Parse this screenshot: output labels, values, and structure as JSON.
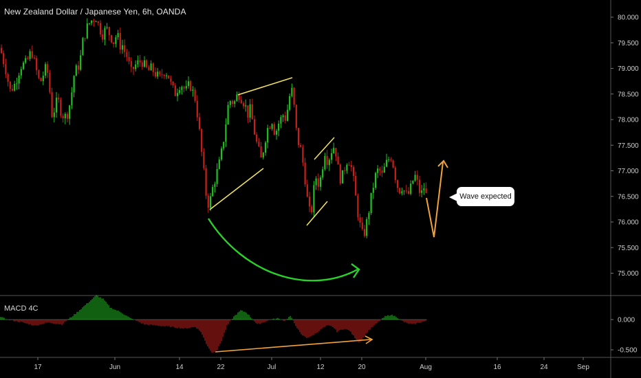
{
  "header": {
    "title": "New Zealand Dollar / Japanese Yen, 6h, OANDA"
  },
  "macd": {
    "label": "MACD 4C",
    "yticks": [
      "0.000",
      "-0.500"
    ]
  },
  "annotation": {
    "callout_text": "Wave expected"
  },
  "colors": {
    "up": "#22c122",
    "down": "#c9201c",
    "wedge": "#f0e060",
    "arc": "#2ad12a",
    "projection": "#f3a33a",
    "grid": "#2a2a2a"
  },
  "chart_data": {
    "type": "candlestick",
    "title": "New Zealand Dollar / Japanese Yen, 6h, OANDA",
    "ylim": [
      74.7,
      80.3
    ],
    "yticks": [
      "80.000",
      "79.500",
      "79.000",
      "78.500",
      "78.000",
      "77.500",
      "77.000",
      "76.500",
      "76.000",
      "75.500",
      "75.000"
    ],
    "xticks": [
      "17",
      "Jun",
      "14",
      "22",
      "Jul",
      "12",
      "20",
      "Aug",
      "16",
      "24",
      "Sep"
    ],
    "price_path": [
      [
        0,
        79.4
      ],
      [
        6,
        79.1
      ],
      [
        10,
        78.9
      ],
      [
        14,
        78.55
      ],
      [
        22,
        78.7
      ],
      [
        30,
        79.05
      ],
      [
        38,
        79.1
      ],
      [
        46,
        79.35
      ],
      [
        52,
        79.0
      ],
      [
        58,
        78.7
      ],
      [
        62,
        78.85
      ],
      [
        68,
        79.05
      ],
      [
        72,
        78.6
      ],
      [
        76,
        78.05
      ],
      [
        80,
        78.25
      ],
      [
        84,
        78.4
      ],
      [
        90,
        78.1
      ],
      [
        96,
        78.05
      ],
      [
        100,
        78.2
      ],
      [
        104,
        78.5
      ],
      [
        108,
        78.9
      ],
      [
        112,
        79.0
      ],
      [
        116,
        79.1
      ],
      [
        120,
        79.5
      ],
      [
        124,
        79.7
      ],
      [
        128,
        79.85
      ],
      [
        134,
        79.95
      ],
      [
        140,
        80.0
      ],
      [
        144,
        79.8
      ],
      [
        150,
        79.65
      ],
      [
        154,
        79.8
      ],
      [
        160,
        79.65
      ],
      [
        166,
        79.5
      ],
      [
        170,
        79.7
      ],
      [
        174,
        79.45
      ],
      [
        178,
        79.45
      ],
      [
        182,
        79.3
      ],
      [
        186,
        79.2
      ],
      [
        190,
        78.9
      ],
      [
        196,
        79.05
      ],
      [
        200,
        79.1
      ],
      [
        206,
        79.15
      ],
      [
        212,
        79.0
      ],
      [
        216,
        78.95
      ],
      [
        220,
        79.0
      ],
      [
        226,
        78.9
      ],
      [
        232,
        78.8
      ],
      [
        238,
        78.95
      ],
      [
        244,
        78.9
      ],
      [
        248,
        78.7
      ],
      [
        254,
        78.5
      ],
      [
        258,
        78.6
      ],
      [
        262,
        78.7
      ],
      [
        266,
        78.65
      ],
      [
        270,
        78.55
      ],
      [
        276,
        78.7
      ],
      [
        280,
        78.55
      ],
      [
        284,
        78.4
      ],
      [
        288,
        78.0
      ],
      [
        292,
        77.5
      ],
      [
        296,
        77.0
      ],
      [
        300,
        76.5
      ],
      [
        304,
        76.3
      ],
      [
        308,
        76.6
      ],
      [
        312,
        76.8
      ],
      [
        316,
        77.0
      ],
      [
        320,
        77.2
      ],
      [
        324,
        77.5
      ],
      [
        328,
        77.9
      ],
      [
        332,
        78.3
      ],
      [
        336,
        78.4
      ],
      [
        340,
        78.3
      ],
      [
        344,
        78.45
      ],
      [
        348,
        78.5
      ],
      [
        352,
        78.4
      ],
      [
        356,
        78.3
      ],
      [
        360,
        78.1
      ],
      [
        364,
        78.2
      ],
      [
        368,
        77.9
      ],
      [
        372,
        77.6
      ],
      [
        376,
        77.4
      ],
      [
        380,
        77.2
      ],
      [
        384,
        77.5
      ],
      [
        388,
        77.8
      ],
      [
        392,
        77.9
      ],
      [
        396,
        78.0
      ],
      [
        400,
        77.7
      ],
      [
        404,
        77.9
      ],
      [
        408,
        78.0
      ],
      [
        412,
        78.1
      ],
      [
        416,
        78.0
      ],
      [
        420,
        78.4
      ],
      [
        424,
        78.6
      ],
      [
        428,
        78.2
      ],
      [
        432,
        77.6
      ],
      [
        436,
        77.5
      ],
      [
        440,
        77.2
      ],
      [
        444,
        76.8
      ],
      [
        448,
        76.3
      ],
      [
        452,
        76.1
      ],
      [
        456,
        76.6
      ],
      [
        460,
        76.9
      ],
      [
        464,
        76.7
      ],
      [
        468,
        77.0
      ],
      [
        472,
        77.4
      ],
      [
        476,
        77.2
      ],
      [
        480,
        77.3
      ],
      [
        484,
        77.5
      ],
      [
        488,
        77.4
      ],
      [
        492,
        77.0
      ],
      [
        496,
        76.8
      ],
      [
        500,
        77.0
      ],
      [
        504,
        77.2
      ],
      [
        508,
        77.2
      ],
      [
        512,
        77.0
      ],
      [
        516,
        76.6
      ],
      [
        520,
        76.2
      ],
      [
        524,
        75.9
      ],
      [
        528,
        75.7
      ],
      [
        532,
        75.9
      ],
      [
        536,
        76.2
      ],
      [
        540,
        76.5
      ],
      [
        544,
        76.8
      ],
      [
        548,
        77.0
      ],
      [
        552,
        77.0
      ],
      [
        556,
        76.9
      ],
      [
        560,
        77.1
      ],
      [
        564,
        77.2
      ],
      [
        568,
        77.3
      ],
      [
        572,
        77.1
      ],
      [
        576,
        76.8
      ],
      [
        580,
        76.6
      ],
      [
        584,
        76.7
      ],
      [
        588,
        76.6
      ],
      [
        592,
        76.5
      ],
      [
        596,
        76.6
      ],
      [
        600,
        76.8
      ],
      [
        604,
        76.9
      ],
      [
        608,
        76.7
      ],
      [
        612,
        76.5
      ],
      [
        616,
        76.7
      ],
      [
        620,
        76.5
      ]
    ],
    "macd_hist": [
      [
        0,
        0.05
      ],
      [
        10,
        0.0
      ],
      [
        30,
        -0.04
      ],
      [
        50,
        -0.1
      ],
      [
        70,
        -0.05
      ],
      [
        90,
        -0.08
      ],
      [
        110,
        0.1
      ],
      [
        128,
        0.28
      ],
      [
        140,
        0.4
      ],
      [
        150,
        0.34
      ],
      [
        160,
        0.2
      ],
      [
        176,
        0.12
      ],
      [
        190,
        0.02
      ],
      [
        210,
        -0.08
      ],
      [
        230,
        -0.1
      ],
      [
        250,
        -0.12
      ],
      [
        268,
        -0.15
      ],
      [
        284,
        -0.12
      ],
      [
        292,
        -0.2
      ],
      [
        300,
        -0.4
      ],
      [
        308,
        -0.55
      ],
      [
        316,
        -0.5
      ],
      [
        322,
        -0.35
      ],
      [
        330,
        -0.1
      ],
      [
        340,
        0.05
      ],
      [
        350,
        0.15
      ],
      [
        358,
        0.12
      ],
      [
        366,
        0.02
      ],
      [
        374,
        -0.08
      ],
      [
        384,
        -0.04
      ],
      [
        394,
        0.0
      ],
      [
        404,
        0.02
      ],
      [
        414,
        -0.02
      ],
      [
        422,
        0.06
      ],
      [
        430,
        -0.1
      ],
      [
        438,
        -0.25
      ],
      [
        446,
        -0.3
      ],
      [
        452,
        -0.28
      ],
      [
        460,
        -0.22
      ],
      [
        468,
        -0.15
      ],
      [
        476,
        -0.1
      ],
      [
        484,
        -0.12
      ],
      [
        490,
        -0.2
      ],
      [
        500,
        -0.15
      ],
      [
        508,
        -0.18
      ],
      [
        516,
        -0.3
      ],
      [
        522,
        -0.38
      ],
      [
        528,
        -0.3
      ],
      [
        536,
        -0.18
      ],
      [
        544,
        -0.1
      ],
      [
        552,
        -0.02
      ],
      [
        560,
        0.05
      ],
      [
        568,
        0.08
      ],
      [
        576,
        0.05
      ],
      [
        584,
        -0.02
      ],
      [
        592,
        -0.06
      ],
      [
        600,
        -0.08
      ],
      [
        610,
        -0.05
      ],
      [
        620,
        -0.02
      ]
    ]
  }
}
